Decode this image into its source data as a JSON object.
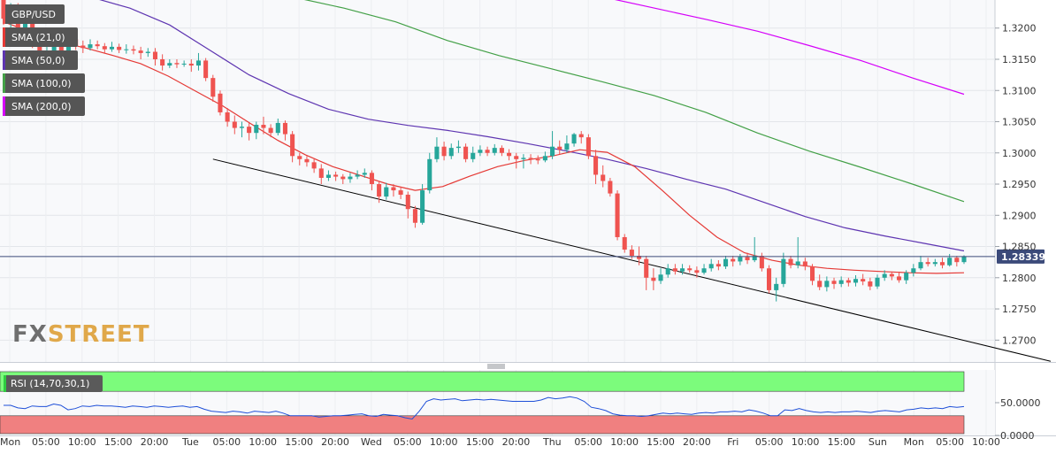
{
  "chart_data": {
    "type": "candlestick",
    "symbol": "GBP/USD",
    "y_ticks": [
      "1.3200",
      "1.3150",
      "1.3100",
      "1.3050",
      "1.3000",
      "1.2950",
      "1.2900",
      "1.2850",
      "1.2800",
      "1.2750",
      "1.2700"
    ],
    "ylim": [
      1.2665,
      1.3245
    ],
    "x_labels": [
      "Mon",
      "05:00",
      "10:00",
      "15:00",
      "20:00",
      "Tue",
      "05:00",
      "10:00",
      "15:00",
      "20:00",
      "Wed",
      "05:00",
      "10:00",
      "15:00",
      "20:00",
      "Thu",
      "05:00",
      "10:00",
      "15:00",
      "20:00",
      "Fri",
      "05:00",
      "10:00",
      "15:00",
      "Sun",
      "Mon",
      "05:00",
      "10:00"
    ],
    "current_price": "1.28339",
    "current_price_value": 1.28339,
    "colors": {
      "up_candle": "#26a69a",
      "down_candle": "#ef5350",
      "sma21": "#e53935",
      "sma50": "#5e35b1",
      "sma100": "#43a047",
      "sma200": "#d500f9",
      "trendline": "#000000",
      "price_line": "#3b4a7a",
      "rsi_overbought": "#7cfc7c",
      "rsi_oversold": "#f08080",
      "rsi_line": "#1e4fd8"
    },
    "legend": [
      {
        "label": "GBP/USD",
        "swatch": "#ef5350"
      },
      {
        "label": "SMA (21,0)",
        "swatch": "#e53935"
      },
      {
        "label": "SMA (50,0)",
        "swatch": "#5e35b1"
      },
      {
        "label": "SMA (100,0)",
        "swatch": "#43a047"
      },
      {
        "label": "SMA (200,0)",
        "swatch": "#d500f9"
      }
    ],
    "candles": [
      [
        1.3245,
        1.3215,
        1.325,
        1.3205
      ],
      [
        1.3215,
        1.323,
        1.324,
        1.32
      ],
      [
        1.3232,
        1.3198,
        1.324,
        1.319
      ],
      [
        1.3198,
        1.321,
        1.3222,
        1.3188
      ],
      [
        1.321,
        1.3185,
        1.3215,
        1.3168
      ],
      [
        1.3185,
        1.3155,
        1.3192,
        1.315
      ],
      [
        1.3155,
        1.3162,
        1.317,
        1.3145
      ],
      [
        1.3162,
        1.317,
        1.318,
        1.315
      ],
      [
        1.317,
        1.3158,
        1.3178,
        1.314
      ],
      [
        1.3158,
        1.3182,
        1.319,
        1.315
      ],
      [
        1.3182,
        1.3172,
        1.3186,
        1.3165
      ],
      [
        1.3172,
        1.3168,
        1.318,
        1.316
      ],
      [
        1.3168,
        1.3174,
        1.3182,
        1.3164
      ],
      [
        1.3174,
        1.3171,
        1.318,
        1.3166
      ],
      [
        1.3171,
        1.3166,
        1.3176,
        1.316
      ],
      [
        1.3166,
        1.317,
        1.3178,
        1.3162
      ],
      [
        1.317,
        1.3165,
        1.3175,
        1.316
      ],
      [
        1.3165,
        1.3166,
        1.3174,
        1.3159
      ],
      [
        1.3166,
        1.3164,
        1.3172,
        1.3158
      ],
      [
        1.3164,
        1.316,
        1.317,
        1.315
      ],
      [
        1.316,
        1.3162,
        1.3168,
        1.3154
      ],
      [
        1.3162,
        1.315,
        1.3168,
        1.314
      ],
      [
        1.315,
        1.314,
        1.3158,
        1.3132
      ],
      [
        1.314,
        1.3144,
        1.315,
        1.3136
      ],
      [
        1.3144,
        1.3142,
        1.315,
        1.3136
      ],
      [
        1.3142,
        1.3143,
        1.3148,
        1.3138
      ],
      [
        1.3143,
        1.314,
        1.315,
        1.313
      ],
      [
        1.314,
        1.3148,
        1.316,
        1.3132
      ],
      [
        1.3148,
        1.312,
        1.3152,
        1.3115
      ],
      [
        1.312,
        1.309,
        1.3125,
        1.3082
      ],
      [
        1.3095,
        1.3065,
        1.31,
        1.306
      ],
      [
        1.3065,
        1.305,
        1.3072,
        1.3042
      ],
      [
        1.305,
        1.304,
        1.306,
        1.303
      ],
      [
        1.304,
        1.3042,
        1.305,
        1.3025
      ],
      [
        1.3042,
        1.3032,
        1.3048,
        1.302
      ],
      [
        1.3032,
        1.3045,
        1.305,
        1.3022
      ],
      [
        1.3045,
        1.304,
        1.3058,
        1.303
      ],
      [
        1.304,
        1.3032,
        1.3046,
        1.3025
      ],
      [
        1.3032,
        1.3048,
        1.3055,
        1.3028
      ],
      [
        1.3048,
        1.303,
        1.3052,
        1.302
      ],
      [
        1.303,
        1.2995,
        1.3035,
        1.2985
      ],
      [
        1.2995,
        1.299,
        1.3,
        1.298
      ],
      [
        1.299,
        1.2985,
        1.2995,
        1.2978
      ],
      [
        1.2985,
        1.2975,
        1.299,
        1.2968
      ],
      [
        1.2975,
        1.296,
        1.2982,
        1.295
      ],
      [
        1.296,
        1.2965,
        1.2972,
        1.2955
      ],
      [
        1.2965,
        1.2962,
        1.297,
        1.2955
      ],
      [
        1.2962,
        1.2958,
        1.2966,
        1.295
      ],
      [
        1.2958,
        1.2962,
        1.2968,
        1.2952
      ],
      [
        1.2962,
        1.2965,
        1.2972,
        1.2958
      ],
      [
        1.2965,
        1.2968,
        1.2975,
        1.296
      ],
      [
        1.2968,
        1.295,
        1.2972,
        1.294
      ],
      [
        1.295,
        1.293,
        1.2955,
        1.292
      ],
      [
        1.293,
        1.2945,
        1.2952,
        1.2925
      ],
      [
        1.2945,
        1.294,
        1.295,
        1.293
      ],
      [
        1.294,
        1.2933,
        1.2946,
        1.2926
      ],
      [
        1.2933,
        1.291,
        1.2938,
        1.2895
      ],
      [
        1.291,
        1.2888,
        1.2915,
        1.288
      ],
      [
        1.2888,
        1.294,
        1.295,
        1.2885
      ],
      [
        1.294,
        1.299,
        1.3,
        1.2935
      ],
      [
        1.299,
        1.301,
        1.3025,
        1.2985
      ],
      [
        1.301,
        1.2995,
        1.3018,
        1.2988
      ],
      [
        1.2995,
        1.3008,
        1.3015,
        1.299
      ],
      [
        1.3008,
        1.301,
        1.302,
        1.3
      ],
      [
        1.301,
        1.299,
        1.3015,
        1.2985
      ],
      [
        1.299,
        1.3,
        1.301,
        1.2985
      ],
      [
        1.3,
        1.3005,
        1.3012,
        1.2995
      ],
      [
        1.3005,
        1.3,
        1.301,
        1.2995
      ],
      [
        1.3,
        1.3008,
        1.3014,
        1.2996
      ],
      [
        1.3008,
        1.3,
        1.3012,
        1.2995
      ],
      [
        1.3,
        1.2995,
        1.3006,
        1.2988
      ],
      [
        1.2995,
        1.299,
        1.3,
        1.2975
      ],
      [
        1.299,
        1.2992,
        1.2998,
        1.2975
      ],
      [
        1.2992,
        1.299,
        1.2998,
        1.2982
      ],
      [
        1.299,
        1.2988,
        1.2996,
        1.2982
      ],
      [
        1.2988,
        1.2995,
        1.3002,
        1.2985
      ],
      [
        1.2995,
        1.301,
        1.3035,
        1.299
      ],
      [
        1.301,
        1.3005,
        1.302,
        1.2998
      ],
      [
        1.3005,
        1.3015,
        1.3028,
        1.3
      ],
      [
        1.3015,
        1.303,
        1.3032,
        1.301
      ],
      [
        1.303,
        1.3025,
        1.3035,
        1.3015
      ],
      [
        1.3025,
        1.2995,
        1.303,
        1.299
      ],
      [
        1.2995,
        1.2965,
        1.3005,
        1.295
      ],
      [
        1.2965,
        1.2955,
        1.298,
        1.2945
      ],
      [
        1.2955,
        1.2935,
        1.296,
        1.293
      ],
      [
        1.2935,
        1.2865,
        1.294,
        1.286
      ],
      [
        1.2865,
        1.2845,
        1.287,
        1.284
      ],
      [
        1.2845,
        1.2835,
        1.2852,
        1.283
      ],
      [
        1.2835,
        1.283,
        1.285,
        1.282
      ],
      [
        1.283,
        1.28,
        1.2835,
        1.278
      ],
      [
        1.28,
        1.2795,
        1.2815,
        1.278
      ],
      [
        1.2795,
        1.2805,
        1.2815,
        1.279
      ],
      [
        1.2805,
        1.2815,
        1.2822,
        1.28
      ],
      [
        1.2815,
        1.281,
        1.2822,
        1.2805
      ],
      [
        1.281,
        1.2815,
        1.2822,
        1.2805
      ],
      [
        1.2815,
        1.2812,
        1.282,
        1.2808
      ],
      [
        1.2812,
        1.2808,
        1.2818,
        1.28
      ],
      [
        1.2808,
        1.2815,
        1.2822,
        1.2805
      ],
      [
        1.2815,
        1.2822,
        1.283,
        1.281
      ],
      [
        1.2822,
        1.2818,
        1.2828,
        1.2812
      ],
      [
        1.2818,
        1.283,
        1.2835,
        1.2814
      ],
      [
        1.283,
        1.2826,
        1.2835,
        1.2818
      ],
      [
        1.2826,
        1.2833,
        1.2838,
        1.282
      ],
      [
        1.2833,
        1.2828,
        1.284,
        1.2822
      ],
      [
        1.2828,
        1.2835,
        1.2865,
        1.2825
      ],
      [
        1.2835,
        1.2815,
        1.284,
        1.281
      ],
      [
        1.2815,
        1.278,
        1.282,
        1.2775
      ],
      [
        1.278,
        1.279,
        1.28,
        1.2762
      ],
      [
        1.279,
        1.283,
        1.284,
        1.2785
      ],
      [
        1.283,
        1.282,
        1.2835,
        1.2815
      ],
      [
        1.282,
        1.2826,
        1.2865,
        1.2815
      ],
      [
        1.2826,
        1.2818,
        1.2832,
        1.2812
      ],
      [
        1.2818,
        1.2795,
        1.2822,
        1.2788
      ],
      [
        1.2795,
        1.2785,
        1.2805,
        1.278
      ],
      [
        1.2785,
        1.2795,
        1.2802,
        1.2778
      ],
      [
        1.2795,
        1.279,
        1.28,
        1.2782
      ],
      [
        1.279,
        1.2796,
        1.2802,
        1.2785
      ],
      [
        1.2796,
        1.2792,
        1.28,
        1.2786
      ],
      [
        1.2792,
        1.2798,
        1.2804,
        1.2786
      ],
      [
        1.2798,
        1.2794,
        1.2806,
        1.2788
      ],
      [
        1.2794,
        1.2786,
        1.28,
        1.278
      ],
      [
        1.2786,
        1.28,
        1.2805,
        1.2782
      ],
      [
        1.28,
        1.2806,
        1.2812,
        1.2795
      ],
      [
        1.2806,
        1.2802,
        1.281,
        1.2796
      ],
      [
        1.2802,
        1.2796,
        1.2808,
        1.2792
      ],
      [
        1.2796,
        1.2808,
        1.2812,
        1.279
      ],
      [
        1.2808,
        1.2815,
        1.2822,
        1.2802
      ],
      [
        1.2815,
        1.2825,
        1.2835,
        1.2812
      ],
      [
        1.2825,
        1.2822,
        1.2832,
        1.2818
      ],
      [
        1.2822,
        1.2825,
        1.283,
        1.2818
      ],
      [
        1.2825,
        1.282,
        1.2832,
        1.2815
      ],
      [
        1.282,
        1.2832,
        1.2838,
        1.2818
      ],
      [
        1.2832,
        1.2825,
        1.2835,
        1.2818
      ],
      [
        1.2825,
        1.2834,
        1.2836,
        1.2822
      ]
    ],
    "sma21": [
      1.321,
      1.3194,
      1.3178,
      1.3168,
      1.3156,
      1.3143,
      1.3123,
      1.3099,
      1.3075,
      1.3047,
      1.302,
      1.2997,
      1.2978,
      1.2964,
      1.295,
      1.294,
      1.2946,
      1.2963,
      1.2978,
      1.2988,
      1.2995,
      1.3005,
      1.3001,
      1.2978,
      1.294,
      1.29,
      1.2865,
      1.284,
      1.2828,
      1.282,
      1.2815,
      1.2812,
      1.281,
      1.2808,
      1.2807,
      1.2808
    ],
    "sma50": [
      1.325,
      1.3232,
      1.3205,
      1.3165,
      1.3125,
      1.3095,
      1.307,
      1.3054,
      1.3044,
      1.3036,
      1.3026,
      1.3015,
      1.3003,
      1.299,
      1.2975,
      1.2958,
      1.2942,
      1.292,
      1.2898,
      1.288,
      1.2867,
      1.2855,
      1.2843
    ],
    "sma100": [
      1.325,
      1.3232,
      1.321,
      1.318,
      1.3156,
      1.3135,
      1.3114,
      1.3092,
      1.3065,
      1.3032,
      1.3003,
      1.2977,
      1.295,
      1.2922
    ],
    "sma200": [
      1.325,
      1.3232,
      1.3214,
      1.3195,
      1.3172,
      1.3148,
      1.312,
      1.3094
    ],
    "trendline": [
      [
        29,
        1.299
      ],
      [
        145,
        1.2666
      ]
    ],
    "rsi_ylim": [
      0,
      100
    ],
    "rsi_ticks": [
      "50.0000",
      "0.0000"
    ],
    "rsi_levels": [
      70,
      30
    ],
    "rsi_label": "RSI (14,70,30,1)",
    "rsi": [
      46,
      46,
      42,
      41,
      45,
      44,
      44,
      48,
      46,
      39,
      41,
      45,
      44,
      46,
      45,
      45,
      44,
      43,
      45,
      44,
      43,
      45,
      44,
      43,
      44,
      45,
      43,
      44,
      40,
      37,
      36,
      35,
      37,
      36,
      34,
      37,
      36,
      35,
      37,
      34,
      30,
      30,
      30,
      30,
      28,
      29,
      30,
      30,
      31,
      32,
      33,
      30,
      29,
      32,
      31,
      30,
      27,
      25,
      37,
      52,
      56,
      54,
      55,
      56,
      53,
      54,
      55,
      54,
      55,
      54,
      53,
      52,
      52,
      52,
      52,
      54,
      58,
      56,
      57,
      59,
      57,
      52,
      43,
      41,
      38,
      33,
      31,
      30,
      30,
      29,
      30,
      32,
      34,
      33,
      34,
      33,
      32,
      34,
      35,
      34,
      36,
      36,
      37,
      36,
      39,
      37,
      34,
      30,
      30,
      39,
      38,
      41,
      38,
      36,
      35,
      36,
      35,
      36,
      36,
      37,
      36,
      35,
      37,
      38,
      37,
      36,
      39,
      40,
      42,
      41,
      42,
      41,
      44,
      43,
      44
    ]
  }
}
